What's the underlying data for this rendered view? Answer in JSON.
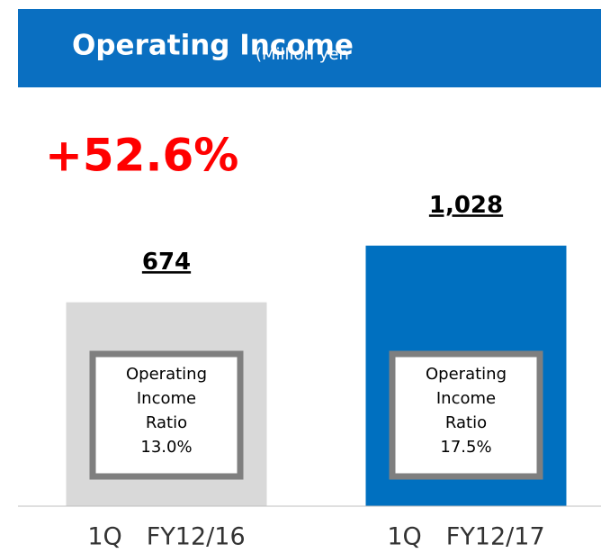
{
  "chart_data": {
    "type": "bar",
    "title": "Operating Income",
    "subtitle": "(Million yen",
    "annotation": "+52.6%",
    "categories": [
      "1Q　FY12/16",
      "1Q　FY12/17"
    ],
    "values": [
      674,
      1028
    ],
    "value_labels": [
      "674",
      "1,028"
    ],
    "colors": [
      "#d9d9d9",
      "#0070c0"
    ],
    "ratio_title": [
      "Operating",
      "Income",
      "Ratio"
    ],
    "ratio_labels": [
      "13.0%",
      "17.5%"
    ],
    "ylim": [
      -600,
      2000
    ]
  }
}
